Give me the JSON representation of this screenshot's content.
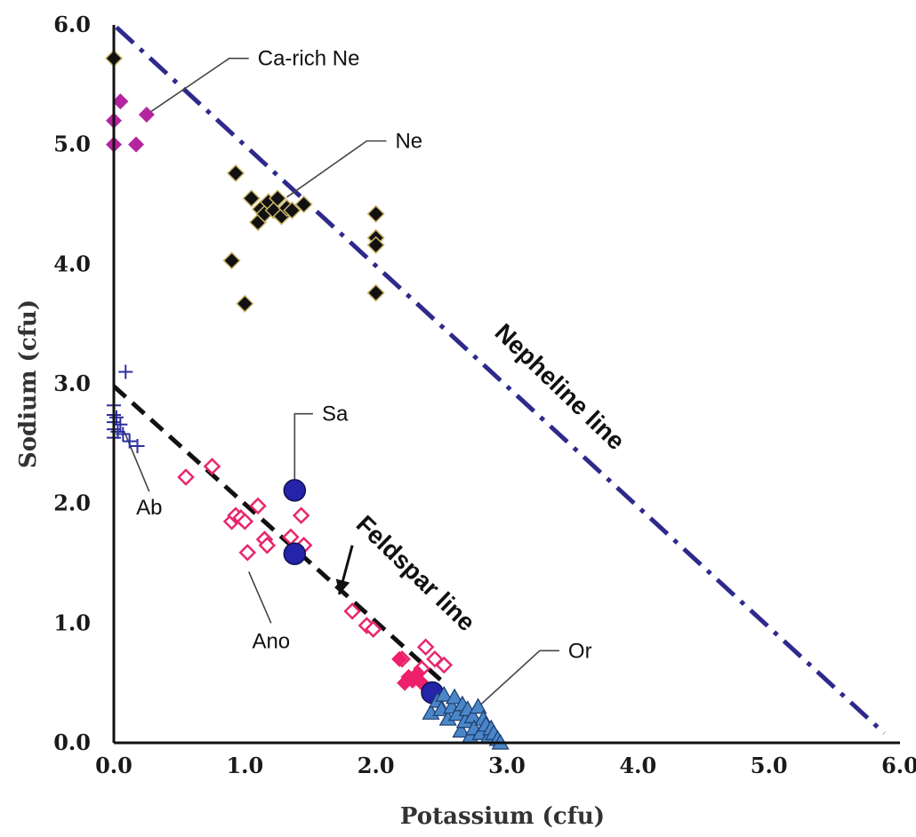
{
  "chart_data": {
    "type": "scatter",
    "xlabel": "Potassium (cfu)",
    "ylabel": "Sodium (cfu)",
    "xlim": [
      0,
      6
    ],
    "ylim": [
      0,
      6
    ],
    "x_ticks": [
      "0.0",
      "1.0",
      "2.0",
      "3.0",
      "4.0",
      "5.0",
      "6.0"
    ],
    "y_ticks": [
      "0.0",
      "1.0",
      "2.0",
      "3.0",
      "4.0",
      "5.0",
      "6.0"
    ],
    "grid": false,
    "reference_lines": [
      {
        "label": "Nepheline line",
        "style": "dash-dot",
        "color": "#2e2a8c",
        "points": [
          [
            0.02,
            5.98
          ],
          [
            5.88,
            0.08
          ]
        ]
      },
      {
        "label": "Feldspar line",
        "style": "dashed",
        "color": "#111111",
        "points": [
          [
            0.0,
            2.98
          ],
          [
            2.52,
            0.5
          ]
        ]
      }
    ],
    "series": [
      {
        "name": "Ca-rich Ne",
        "marker": "diamond-filled",
        "color": "#b5249f",
        "points": [
          [
            0.0,
            5.0
          ],
          [
            0.0,
            5.2
          ],
          [
            0.05,
            5.36
          ],
          [
            0.17,
            5.0
          ],
          [
            0.25,
            5.25
          ]
        ]
      },
      {
        "name": "Ne",
        "marker": "diamond-filled-outlined",
        "color": "#111111",
        "points": [
          [
            0.0,
            5.72
          ],
          [
            0.93,
            4.76
          ],
          [
            0.9,
            4.03
          ],
          [
            1.0,
            3.67
          ],
          [
            1.05,
            4.55
          ],
          [
            1.1,
            4.35
          ],
          [
            1.12,
            4.46
          ],
          [
            1.15,
            4.42
          ],
          [
            1.18,
            4.52
          ],
          [
            1.22,
            4.45
          ],
          [
            1.25,
            4.55
          ],
          [
            1.28,
            4.4
          ],
          [
            1.32,
            4.47
          ],
          [
            1.36,
            4.45
          ],
          [
            1.45,
            4.5
          ],
          [
            2.0,
            4.42
          ],
          [
            2.0,
            4.22
          ],
          [
            2.0,
            4.16
          ],
          [
            2.0,
            3.76
          ]
        ]
      },
      {
        "name": "Ab",
        "marker": "plus",
        "color": "#2c2f9e",
        "points": [
          [
            0.0,
            2.82
          ],
          [
            0.0,
            2.74
          ],
          [
            0.0,
            2.68
          ],
          [
            0.0,
            2.62
          ],
          [
            0.0,
            2.55
          ],
          [
            0.02,
            2.72
          ],
          [
            0.03,
            2.6
          ],
          [
            0.05,
            2.66
          ],
          [
            0.07,
            2.58
          ],
          [
            0.09,
            3.1
          ],
          [
            0.12,
            2.52
          ],
          [
            0.18,
            2.48
          ]
        ]
      },
      {
        "name": "Ano",
        "marker": "diamond-open",
        "color": "#e8266d",
        "points": [
          [
            0.55,
            2.22
          ],
          [
            0.75,
            2.31
          ],
          [
            0.9,
            1.85
          ],
          [
            0.93,
            1.9
          ],
          [
            0.97,
            1.88
          ],
          [
            1.0,
            1.85
          ],
          [
            1.02,
            1.59
          ],
          [
            1.1,
            1.98
          ],
          [
            1.15,
            1.7
          ],
          [
            1.17,
            1.65
          ],
          [
            1.35,
            1.72
          ],
          [
            1.43,
            1.9
          ],
          [
            1.45,
            1.65
          ],
          [
            1.82,
            1.1
          ],
          [
            1.93,
            0.98
          ],
          [
            1.98,
            0.95
          ],
          [
            2.2,
            0.7
          ],
          [
            2.35,
            0.62
          ],
          [
            2.38,
            0.8
          ],
          [
            2.45,
            0.7
          ],
          [
            2.52,
            0.65
          ]
        ]
      },
      {
        "name": "Ano",
        "marker": "diamond-filled",
        "color": "#ee1f6b",
        "points": [
          [
            2.18,
            0.7
          ],
          [
            2.22,
            0.5
          ],
          [
            2.25,
            0.55
          ],
          [
            2.28,
            0.52
          ],
          [
            2.32,
            0.58
          ],
          [
            2.35,
            0.5
          ]
        ]
      },
      {
        "name": "Sa",
        "marker": "circle",
        "color": "#2424a8",
        "points": [
          [
            1.38,
            2.11
          ],
          [
            1.38,
            1.58
          ],
          [
            2.43,
            0.42
          ]
        ]
      },
      {
        "name": "Or",
        "marker": "triangle",
        "color": "#4a86c8",
        "points": [
          [
            2.42,
            0.25
          ],
          [
            2.47,
            0.35
          ],
          [
            2.5,
            0.28
          ],
          [
            2.52,
            0.4
          ],
          [
            2.55,
            0.2
          ],
          [
            2.58,
            0.3
          ],
          [
            2.6,
            0.38
          ],
          [
            2.62,
            0.24
          ],
          [
            2.65,
            0.1
          ],
          [
            2.66,
            0.32
          ],
          [
            2.68,
            0.18
          ],
          [
            2.7,
            0.28
          ],
          [
            2.72,
            0.05
          ],
          [
            2.74,
            0.22
          ],
          [
            2.75,
            0.12
          ],
          [
            2.78,
            0.3
          ],
          [
            2.8,
            0.08
          ],
          [
            2.82,
            0.2
          ],
          [
            2.84,
            0.15
          ],
          [
            2.86,
            0.05
          ],
          [
            2.88,
            0.12
          ],
          [
            2.9,
            0.08
          ],
          [
            2.93,
            0.03
          ],
          [
            2.95,
            0.0
          ]
        ]
      }
    ],
    "annotations": [
      {
        "text": "Ca-rich Ne",
        "target": [
          0.25,
          5.25
        ],
        "anchor": [
          1.03,
          5.72
        ]
      },
      {
        "text": "Ne",
        "target": [
          1.32,
          4.56
        ],
        "anchor": [
          2.08,
          5.03
        ]
      },
      {
        "text": "Sa",
        "target": [
          1.38,
          2.11
        ],
        "anchor": [
          1.52,
          2.75
        ]
      },
      {
        "text": "Ab",
        "target": [
          0.08,
          2.6
        ],
        "anchor": [
          0.27,
          2.1
        ]
      },
      {
        "text": "Ano",
        "target": [
          1.03,
          1.43
        ],
        "anchor": [
          1.2,
          1.0
        ]
      },
      {
        "text": "Or",
        "target": [
          2.73,
          0.25
        ],
        "anchor": [
          3.4,
          0.77
        ]
      }
    ],
    "feldspar_arrow": {
      "from": [
        1.82,
        1.65
      ],
      "to": [
        1.72,
        1.24
      ]
    }
  }
}
